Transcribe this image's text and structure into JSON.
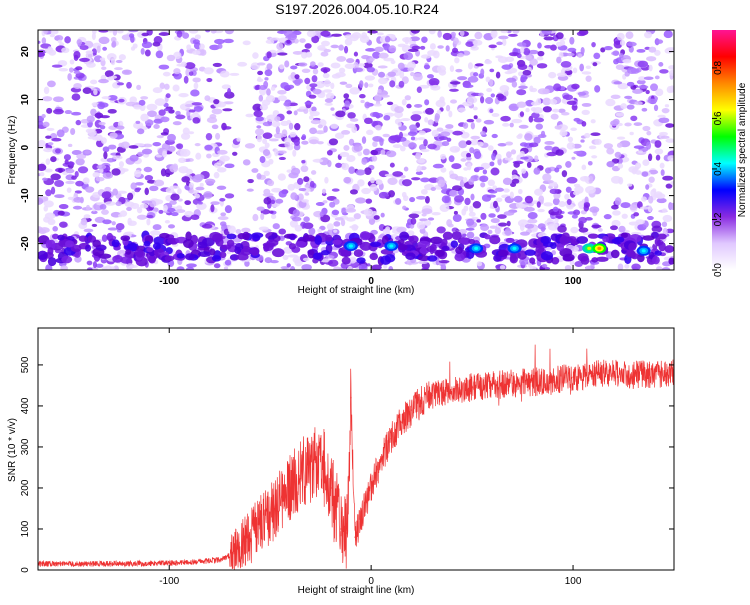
{
  "title": "S197.2026.004.05.10.R24",
  "chart_data": [
    {
      "type": "heatmap",
      "xlabel": "Height of straight line (km)",
      "ylabel": "Frequency (Hz)",
      "xlim": [
        -165,
        150
      ],
      "ylim": [
        -25.5,
        24.5
      ],
      "xticks": [
        -100,
        0,
        100
      ],
      "yticks": [
        -20,
        -10,
        0,
        10,
        20
      ],
      "colorbar": {
        "label": "Normalized spectral amplitude",
        "ticks": [
          "0.0",
          "0.2",
          "0.4",
          "0.6",
          "0.8"
        ],
        "tick_values": [
          0,
          0.2,
          0.4,
          0.6,
          0.8
        ],
        "range": [
          0,
          0.95
        ],
        "colors": [
          "#ffffff",
          "#e0c8ff",
          "#8a2be2",
          "#0000ff",
          "#00ffff",
          "#00ff00",
          "#ffff00",
          "#ff8800",
          "#ff0000",
          "#ff1493"
        ]
      },
      "band_frequency_hz": -21,
      "notable_peaks": [
        {
          "x": -10,
          "y": -20.5,
          "value": 0.3
        },
        {
          "x": 10,
          "y": -20.5,
          "value": 0.3
        },
        {
          "x": 52,
          "y": -21,
          "value": 0.2
        },
        {
          "x": 71,
          "y": -21,
          "value": 0.25
        },
        {
          "x": 108,
          "y": -21,
          "value": 0.45
        },
        {
          "x": 113,
          "y": -21,
          "value": 0.7
        },
        {
          "x": 135,
          "y": -21.5,
          "value": 0.2
        }
      ]
    },
    {
      "type": "line",
      "xlabel": "Height of straight line (km)",
      "ylabel": "SNR (10 * v/v)",
      "xlim": [
        -165,
        150
      ],
      "ylim": [
        0,
        590
      ],
      "xticks": [
        -100,
        0,
        100
      ],
      "yticks": [
        0,
        100,
        200,
        300,
        400,
        500
      ],
      "color": "#ee3333",
      "x": [
        -165,
        -140,
        -110,
        -90,
        -75,
        -68,
        -62,
        -55,
        -48,
        -40,
        -32,
        -25,
        -20,
        -15,
        -12,
        -10,
        -8,
        -5,
        0,
        5,
        10,
        15,
        20,
        25,
        30,
        40,
        50,
        60,
        70,
        80,
        90,
        100,
        110,
        120,
        130,
        140,
        150
      ],
      "y": [
        15,
        15,
        16,
        18,
        25,
        40,
        70,
        110,
        150,
        200,
        250,
        270,
        200,
        100,
        90,
        420,
        80,
        130,
        200,
        270,
        320,
        360,
        390,
        410,
        425,
        440,
        445,
        450,
        455,
        458,
        462,
        470,
        478,
        480,
        475,
        478,
        480
      ]
    }
  ]
}
